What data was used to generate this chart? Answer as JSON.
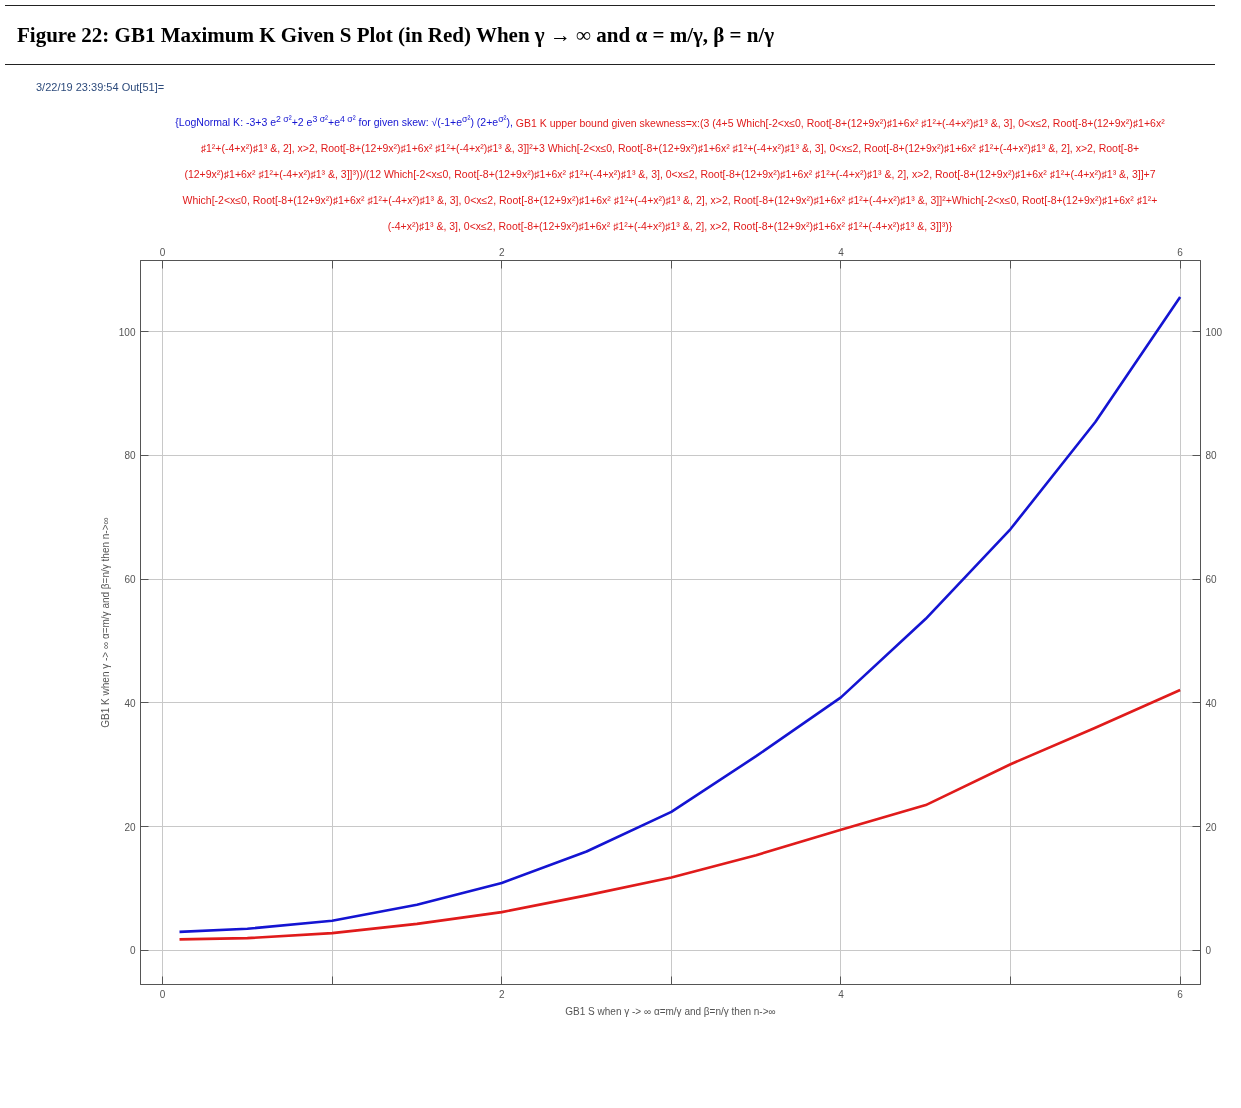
{
  "chart_data": {
    "type": "line",
    "title": "Figure 22: GB1 Maximum K Given S Plot (in Red) When  γ → ∞ and α = m/γ, β = n/γ",
    "annotations": [
      "3/22/19 23:39:54 Out[51]="
    ],
    "xlabel": "GB1 S when γ -> ∞ α=m/γ and β=n/γ then n->∞",
    "ylabel": "GB1 K when γ -> ∞ α=m/γ and β=n/γ then n->∞",
    "x": [
      0.1,
      0.5,
      1,
      1.5,
      2,
      2.5,
      3,
      3.5,
      4,
      4.5,
      5,
      5.5,
      6
    ],
    "series": [
      {
        "name": "{LogNormal K: -3+3 e$^{2 σ²}$+2 e$^{3 σ²}$+e$^{4 σ²}$ for given skew: √(-1+e$^{σ²}$) (2+e$^{σ²}$),",
        "color": "#1414d2",
        "values": [
          3.0,
          3.5,
          4.8,
          7.4,
          10.9,
          16,
          22.4,
          31.4,
          40.9,
          53.6,
          68.1,
          85.4,
          105.6
        ]
      },
      {
        "name": "GB1 K upper bound given skewness=x:(3 (4+5 Which[-2<x≤0, Root[-8+(12+9x²)♯1+6x² ♯1²+(-4+x²)♯1³ &, 3], 0<x≤2, Root[-8+(12+9x²)♯1+6x² ♯1²+(-4+x²)♯1³ &, 2], x>2, Root[-8+(12+9x²)♯1+6x² ♯1²+(-4+x²)♯1³ &, 3]]²+3 Which[-2<x≤0, Root[-8+(12+9x²)♯1+6x² ♯1²+(-4+x²)♯1³ &, 3], 0<x≤2, Root[-8+(12+9x²)♯1+6x² ♯1²+(-4+x²)♯1³ &, 2], x>2, Root[-8+(12+9x²)♯1+6x² ♯1²+(-4+x²)♯1³ &, 3]]³))/(12 Which[-2<x≤0, Root[-8+(12+9x²)♯1+6x² ♯1²+(-4+x²)♯1³ &, 3], 0<x≤2, Root[-8+(12+9x²)♯1+6x² ♯1²+(-4+x²)♯1³ &, 2], x>2, Root[-8+(12+9x²)♯1+6x² ♯1²+(-4+x²)♯1³ &, 3]]+7 Which[-2<x≤0, Root[-8+(12+9x²)♯1+6x² ♯1²+(-4+x²)♯1³ &, 3], 0<x≤2, Root[-8+(12+9x²)♯1+6x² ♯1²+(-4+x²)♯1³ &, 2], x>2, Root[-8+(12+9x²)♯1+6x² ♯1²+(-4+x²)♯1³ &, 3]]²+Which[-2<x≤0, Root[-8+(12+9x²)♯1+6x² ♯1²+(-4+x²)♯1³ &, 3], 0<x≤2, Root[-8+(12+9x²)♯1+6x² ♯1²+(-4+x²)♯1³ &, 2], x>2, Root[-8+(12+9x²)♯1+6x² ♯1²+(-4+x²)♯1³ &, 3]]³)}",
        "color": "#e01b1b",
        "values": [
          1.8,
          2.0,
          2.8,
          4.3,
          6.2,
          8.9,
          11.8,
          15.4,
          19.5,
          23.5,
          30.1,
          36,
          42.1
        ]
      }
    ],
    "xlim": [
      -0.13,
      6.12
    ],
    "ylim": [
      -5.5,
      111.5
    ],
    "xticks": [
      0,
      {
        "value": 1,
        "label": null
      },
      2,
      {
        "value": 3,
        "label": null
      },
      4,
      {
        "value": 5,
        "label": null
      },
      6
    ],
    "x2lim": [
      -0.13,
      6.12
    ],
    "x2ticks": [
      0,
      {
        "value": 1,
        "label": null
      },
      2,
      {
        "value": 3,
        "label": null
      },
      4,
      {
        "value": 5,
        "label": null
      },
      6
    ],
    "yticks": [
      0,
      20,
      40,
      60,
      80,
      100
    ],
    "y2lim": [
      -5.5,
      111.5
    ],
    "y2ticks": [
      0,
      20,
      40,
      60,
      80,
      100
    ],
    "grid": true,
    "line_style": "solid",
    "marker": "none"
  }
}
